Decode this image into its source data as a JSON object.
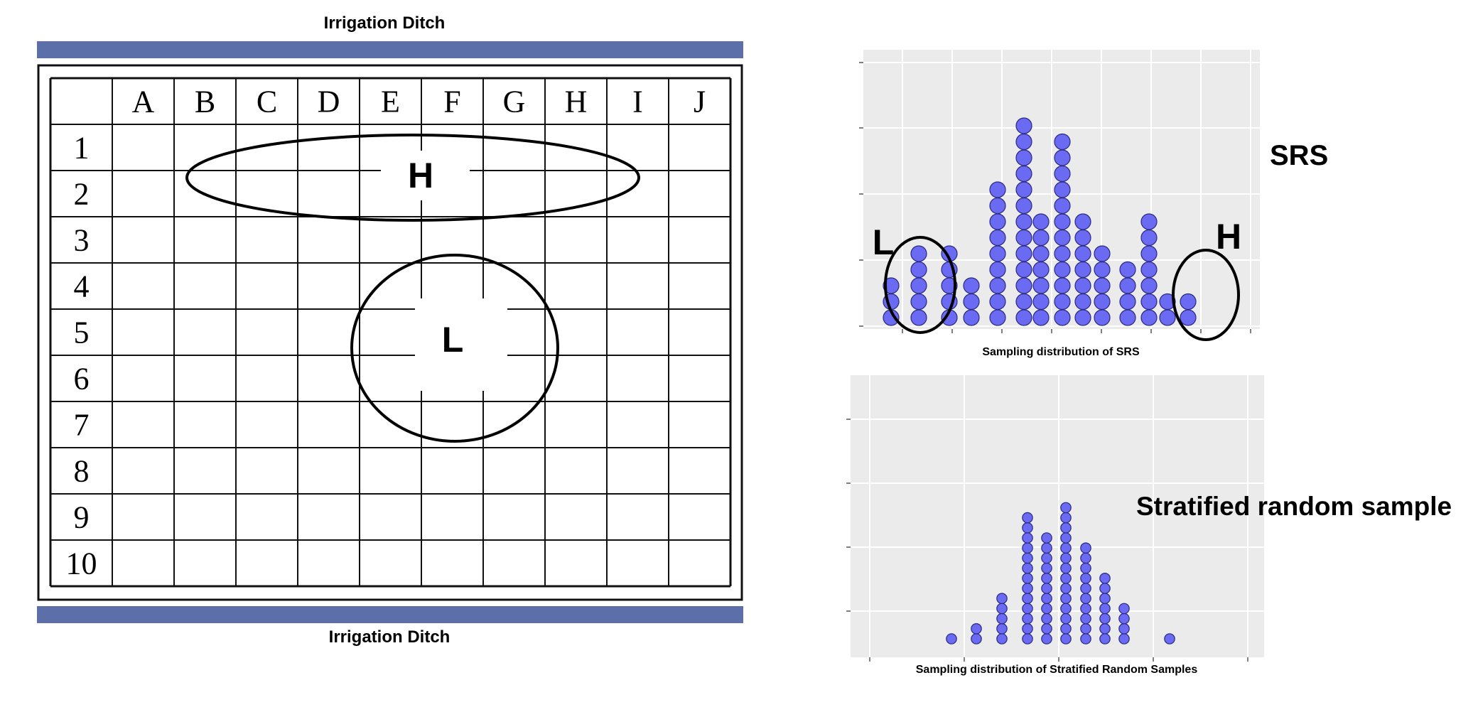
{
  "field": {
    "top_ditch_label": "Irrigation Ditch",
    "bottom_ditch_label": "Irrigation Ditch",
    "columns": [
      "A",
      "B",
      "C",
      "D",
      "E",
      "F",
      "G",
      "H",
      "I",
      "J"
    ],
    "rows": [
      "1",
      "2",
      "3",
      "4",
      "5",
      "6",
      "7",
      "8",
      "9",
      "10"
    ],
    "stratum_high_label": "H",
    "stratum_low_label": "L",
    "ditch_color": "#5c6fa8"
  },
  "labels": {
    "srs_title": "SRS",
    "stratified_title": "Stratified random sample",
    "srs_low_marker": "L",
    "srs_high_marker": "H"
  },
  "chart_data": [
    {
      "type": "dotplot",
      "xlabel": "Sampling distribution of SRS",
      "dot_color": "#6a6af2",
      "stacks": [
        3,
        5,
        5,
        3,
        9,
        13,
        7,
        12,
        7,
        5,
        4,
        7,
        2,
        2
      ]
    },
    {
      "type": "dotplot",
      "xlabel": "Sampling distribution of Stratified Random Samples",
      "dot_color": "#6a6af2",
      "stacks": [
        1,
        2,
        5,
        13,
        11,
        14,
        10,
        7,
        4,
        1
      ]
    }
  ]
}
